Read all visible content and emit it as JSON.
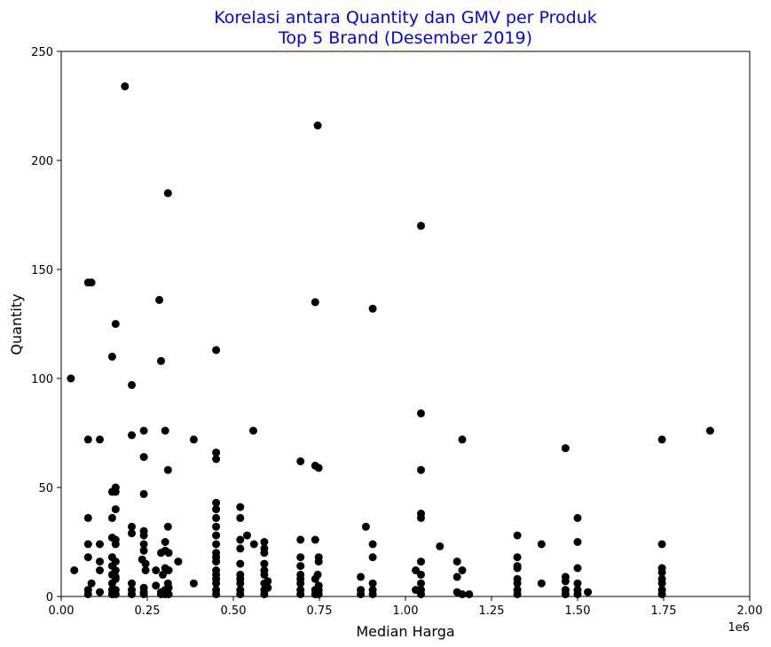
{
  "chart_data": {
    "type": "scatter",
    "title_line1": "Korelasi antara Quantity dan GMV per Produk",
    "title_line2": "Top 5 Brand (Desember 2019)",
    "xlabel": "Median Harga",
    "ylabel": "Quantity",
    "x_offset_label": "1e6",
    "xlim": [
      0,
      2000000
    ],
    "ylim": [
      0,
      250
    ],
    "x_ticks": [
      0,
      250000,
      500000,
      750000,
      1000000,
      1250000,
      1500000,
      1750000,
      2000000
    ],
    "x_tick_labels": [
      "0.00",
      "0.25",
      "0.50",
      "0.75",
      "1.00",
      "1.25",
      "1.50",
      "1.75",
      "2.00"
    ],
    "y_ticks": [
      0,
      50,
      100,
      150,
      200,
      250
    ],
    "y_tick_labels": [
      "0",
      "50",
      "100",
      "150",
      "200",
      "250"
    ],
    "grid": false,
    "marker_color": "#000000",
    "title_color": "#0000ff",
    "points": [
      [
        185000,
        234
      ],
      [
        745000,
        216
      ],
      [
        310000,
        185
      ],
      [
        1045000,
        170
      ],
      [
        78000,
        144
      ],
      [
        88000,
        144
      ],
      [
        285000,
        136
      ],
      [
        738000,
        135
      ],
      [
        905000,
        132
      ],
      [
        158000,
        125
      ],
      [
        450000,
        113
      ],
      [
        148000,
        110
      ],
      [
        290000,
        108
      ],
      [
        28000,
        100
      ],
      [
        205000,
        97
      ],
      [
        1045000,
        84
      ],
      [
        240000,
        76
      ],
      [
        302000,
        76
      ],
      [
        558000,
        76
      ],
      [
        1885000,
        76
      ],
      [
        205000,
        74
      ],
      [
        78000,
        72
      ],
      [
        112000,
        72
      ],
      [
        385000,
        72
      ],
      [
        1165000,
        72
      ],
      [
        1745000,
        72
      ],
      [
        1465000,
        68
      ],
      [
        450000,
        66
      ],
      [
        240000,
        64
      ],
      [
        450000,
        63
      ],
      [
        695000,
        62
      ],
      [
        738000,
        60
      ],
      [
        748000,
        59
      ],
      [
        310000,
        58
      ],
      [
        1045000,
        58
      ],
      [
        158000,
        50
      ],
      [
        148000,
        48
      ],
      [
        158000,
        48
      ],
      [
        240000,
        47
      ],
      [
        450000,
        43
      ],
      [
        158000,
        40
      ],
      [
        450000,
        40
      ],
      [
        520000,
        41
      ],
      [
        1045000,
        38
      ],
      [
        78000,
        36
      ],
      [
        148000,
        36
      ],
      [
        450000,
        36
      ],
      [
        520000,
        36
      ],
      [
        1045000,
        36
      ],
      [
        1500000,
        36
      ],
      [
        205000,
        32
      ],
      [
        310000,
        32
      ],
      [
        885000,
        32
      ],
      [
        450000,
        32
      ],
      [
        240000,
        30
      ],
      [
        205000,
        29
      ],
      [
        240000,
        28
      ],
      [
        540000,
        28
      ],
      [
        1325000,
        28
      ],
      [
        450000,
        28
      ],
      [
        148000,
        27
      ],
      [
        158000,
        26
      ],
      [
        520000,
        26
      ],
      [
        695000,
        26
      ],
      [
        738000,
        26
      ],
      [
        302000,
        25
      ],
      [
        590000,
        25
      ],
      [
        1500000,
        25
      ],
      [
        78000,
        24
      ],
      [
        112000,
        24
      ],
      [
        158000,
        24
      ],
      [
        240000,
        24
      ],
      [
        560000,
        24
      ],
      [
        905000,
        24
      ],
      [
        1395000,
        24
      ],
      [
        1745000,
        24
      ],
      [
        450000,
        24
      ],
      [
        590000,
        22
      ],
      [
        520000,
        22
      ],
      [
        1100000,
        23
      ],
      [
        240000,
        21
      ],
      [
        302000,
        21
      ],
      [
        290000,
        20
      ],
      [
        312000,
        20
      ],
      [
        450000,
        20
      ],
      [
        590000,
        20
      ],
      [
        78000,
        18
      ],
      [
        148000,
        18
      ],
      [
        695000,
        18
      ],
      [
        748000,
        18
      ],
      [
        905000,
        18
      ],
      [
        1325000,
        18
      ],
      [
        450000,
        18
      ],
      [
        112000,
        16
      ],
      [
        158000,
        16
      ],
      [
        235000,
        17
      ],
      [
        340000,
        16
      ],
      [
        748000,
        16
      ],
      [
        1045000,
        16
      ],
      [
        1150000,
        16
      ],
      [
        450000,
        16
      ],
      [
        148000,
        14
      ],
      [
        245000,
        15
      ],
      [
        302000,
        13
      ],
      [
        520000,
        15
      ],
      [
        590000,
        15
      ],
      [
        695000,
        14
      ],
      [
        1325000,
        14
      ],
      [
        38000,
        12
      ],
      [
        112000,
        12
      ],
      [
        158000,
        12
      ],
      [
        245000,
        12
      ],
      [
        275000,
        12
      ],
      [
        312000,
        12
      ],
      [
        1030000,
        12
      ],
      [
        1165000,
        12
      ],
      [
        1325000,
        13
      ],
      [
        1500000,
        13
      ],
      [
        1745000,
        13
      ],
      [
        450000,
        12
      ],
      [
        590000,
        12
      ],
      [
        148000,
        10
      ],
      [
        158000,
        9
      ],
      [
        295000,
        10
      ],
      [
        450000,
        10
      ],
      [
        520000,
        10
      ],
      [
        590000,
        10
      ],
      [
        695000,
        10
      ],
      [
        745000,
        10
      ],
      [
        1045000,
        10
      ],
      [
        1150000,
        9
      ],
      [
        1465000,
        9
      ],
      [
        1745000,
        11
      ],
      [
        158000,
        8
      ],
      [
        450000,
        8
      ],
      [
        520000,
        8
      ],
      [
        600000,
        7
      ],
      [
        695000,
        8
      ],
      [
        738000,
        8
      ],
      [
        870000,
        9
      ],
      [
        1325000,
        8
      ],
      [
        1465000,
        7
      ],
      [
        1745000,
        8
      ],
      [
        88000,
        6
      ],
      [
        148000,
        6
      ],
      [
        205000,
        6
      ],
      [
        240000,
        4
      ],
      [
        275000,
        5
      ],
      [
        310000,
        6
      ],
      [
        385000,
        6
      ],
      [
        450000,
        6
      ],
      [
        520000,
        6
      ],
      [
        590000,
        6
      ],
      [
        695000,
        6
      ],
      [
        748000,
        5
      ],
      [
        905000,
        6
      ],
      [
        1045000,
        6
      ],
      [
        1325000,
        6
      ],
      [
        1395000,
        6
      ],
      [
        1500000,
        6
      ],
      [
        1745000,
        6
      ],
      [
        78000,
        3
      ],
      [
        112000,
        2
      ],
      [
        148000,
        3
      ],
      [
        158000,
        3
      ],
      [
        205000,
        3
      ],
      [
        240000,
        2
      ],
      [
        290000,
        2
      ],
      [
        302000,
        3
      ],
      [
        312000,
        4
      ],
      [
        450000,
        3
      ],
      [
        520000,
        3
      ],
      [
        590000,
        3
      ],
      [
        600000,
        4
      ],
      [
        695000,
        3
      ],
      [
        738000,
        3
      ],
      [
        748000,
        3
      ],
      [
        870000,
        3
      ],
      [
        905000,
        3
      ],
      [
        1030000,
        3
      ],
      [
        1045000,
        3
      ],
      [
        1150000,
        2
      ],
      [
        1325000,
        3
      ],
      [
        1465000,
        3
      ],
      [
        1500000,
        3
      ],
      [
        1530000,
        2
      ],
      [
        1745000,
        3
      ],
      [
        78000,
        1
      ],
      [
        148000,
        1
      ],
      [
        158000,
        1
      ],
      [
        205000,
        1
      ],
      [
        240000,
        1
      ],
      [
        290000,
        1
      ],
      [
        302000,
        1
      ],
      [
        312000,
        1
      ],
      [
        450000,
        1
      ],
      [
        520000,
        1
      ],
      [
        590000,
        1
      ],
      [
        695000,
        1
      ],
      [
        738000,
        1
      ],
      [
        748000,
        1
      ],
      [
        870000,
        1
      ],
      [
        905000,
        1
      ],
      [
        1045000,
        1
      ],
      [
        1165000,
        1
      ],
      [
        1185000,
        1
      ],
      [
        1325000,
        1
      ],
      [
        1465000,
        1
      ],
      [
        1500000,
        1
      ],
      [
        1745000,
        1
      ]
    ]
  }
}
